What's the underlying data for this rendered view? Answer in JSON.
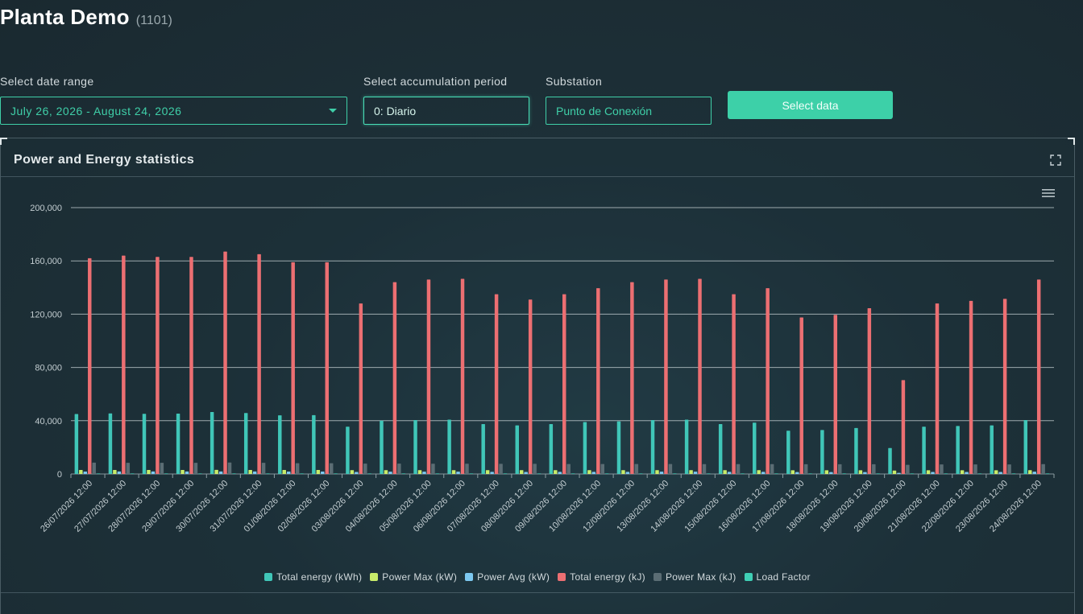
{
  "header": {
    "title": "Planta Demo",
    "plant_id": "(1101)"
  },
  "filters": {
    "date_range_label": "Select date range",
    "date_range_value": "July 26, 2026 - August 24, 2026",
    "period_label": "Select accumulation period",
    "period_value": "0: Diario",
    "substation_label": "Substation",
    "substation_value": "Punto de Conexión",
    "select_button": "Select data"
  },
  "panel": {
    "title": "Power and Energy statistics"
  },
  "colors": {
    "total_energy_kwh": "#40c6b8",
    "power_max_kw": "#c8ec6a",
    "power_avg_kw": "#7cc8f0",
    "total_energy_kj": "#ec6f72",
    "power_max_kj": "#5b6d74",
    "load_factor": "#3fcfb5",
    "accent": "#3dd0a8"
  },
  "chart_data": {
    "type": "bar",
    "ylim": [
      0,
      200000
    ],
    "y_ticks": [
      "0",
      "40,000",
      "80,000",
      "120,000",
      "160,000",
      "200,000"
    ],
    "y_tick_values": [
      0,
      40000,
      80000,
      120000,
      160000,
      200000
    ],
    "categories": [
      "26/07/2026 12:00",
      "27/07/2026 12:00",
      "28/07/2026 12:00",
      "29/07/2026 12:00",
      "30/07/2026 12:00",
      "31/07/2026 12:00",
      "01/08/2026 12:00",
      "02/08/2026 12:00",
      "03/08/2026 12:00",
      "04/08/2026 12:00",
      "05/08/2026 12:00",
      "06/08/2026 12:00",
      "07/08/2026 12:00",
      "08/08/2026 12:00",
      "09/08/2026 12:00",
      "10/08/2026 12:00",
      "12/08/2026 12:00",
      "13/08/2026 12:00",
      "14/08/2026 12:00",
      "15/08/2026 12:00",
      "16/08/2026 12:00",
      "17/08/2026 12:00",
      "18/08/2026 12:00",
      "19/08/2026 12:00",
      "20/08/2026 12:00",
      "21/08/2026 12:00",
      "22/08/2026 12:00",
      "23/08/2026 12:00",
      "24/08/2026 12:00"
    ],
    "series": [
      {
        "name": "Total energy (kWh)",
        "color_key": "total_energy_kwh",
        "values": [
          45000,
          45500,
          45200,
          45300,
          46500,
          45800,
          44000,
          44200,
          35500,
          40000,
          40500,
          40800,
          37500,
          36500,
          37500,
          39000,
          39500,
          40500,
          40800,
          37500,
          38500,
          32500,
          33000,
          34500,
          19500,
          35500,
          36000,
          36500,
          40500
        ]
      },
      {
        "name": "Power Max (kW)",
        "color_key": "power_max_kw",
        "values": [
          3000,
          3000,
          3000,
          3000,
          3100,
          3000,
          3000,
          3000,
          2900,
          2900,
          2900,
          2900,
          2900,
          2900,
          2900,
          2900,
          2900,
          2900,
          2900,
          2900,
          2900,
          2800,
          2800,
          2800,
          2600,
          2800,
          2800,
          2800,
          2900
        ]
      },
      {
        "name": "Power Avg (kW)",
        "color_key": "power_avg_kw",
        "values": [
          1800,
          1900,
          1900,
          1900,
          1900,
          1900,
          1800,
          1800,
          1500,
          1700,
          1700,
          1700,
          1600,
          1500,
          1600,
          1600,
          1600,
          1700,
          1700,
          1600,
          1600,
          1400,
          1400,
          1400,
          800,
          1500,
          1500,
          1500,
          1700
        ]
      },
      {
        "name": "Total energy (kJ)",
        "color_key": "total_energy_kj",
        "values": [
          162000,
          164000,
          163000,
          163000,
          167000,
          165000,
          159000,
          159000,
          128000,
          144000,
          146000,
          146500,
          135000,
          131000,
          135000,
          139500,
          144000,
          146000,
          146500,
          135000,
          139500,
          117500,
          119500,
          124500,
          70500,
          128000,
          130000,
          131500,
          146000
        ]
      },
      {
        "name": "Power Max (kJ)",
        "color_key": "power_max_kj",
        "values": [
          8500,
          8400,
          8400,
          8400,
          8600,
          8400,
          8100,
          8100,
          7800,
          7800,
          7700,
          7700,
          7600,
          7600,
          7500,
          7500,
          7500,
          7500,
          7400,
          7400,
          7400,
          7300,
          7300,
          7300,
          6900,
          7200,
          7200,
          7200,
          7400
        ]
      },
      {
        "name": "Load Factor",
        "color_key": "load_factor",
        "values": [
          0.9,
          0.9,
          0.9,
          0.9,
          0.9,
          0.9,
          0.9,
          0.9,
          0.8,
          0.8,
          0.8,
          0.8,
          0.8,
          0.8,
          0.8,
          0.8,
          0.8,
          0.8,
          0.8,
          0.8,
          0.8,
          0.7,
          0.7,
          0.7,
          0.4,
          0.8,
          0.8,
          0.8,
          0.8
        ]
      }
    ],
    "grid": true,
    "legend_position": "bottom-center"
  }
}
